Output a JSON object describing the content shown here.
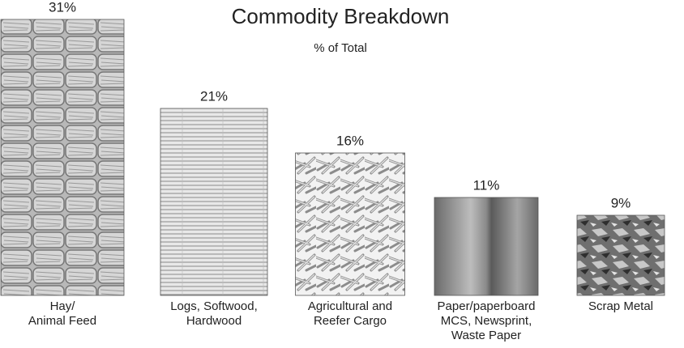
{
  "chart_data": {
    "type": "pictograph",
    "title": "Commodity Breakdown",
    "subtitle": "% of Total",
    "categories": [
      "Hay/\nAnimal Feed",
      "Logs, Softwood,\nHardwood",
      "Agricultural and\nReefer Cargo",
      "Paper/paperboard\nMCS, Newsprint,\nWaste Paper",
      "Scrap Metal"
    ],
    "values": [
      31,
      21,
      16,
      11,
      9
    ],
    "value_labels": [
      "31%",
      "21%",
      "16%",
      "11%",
      "9%"
    ]
  }
}
